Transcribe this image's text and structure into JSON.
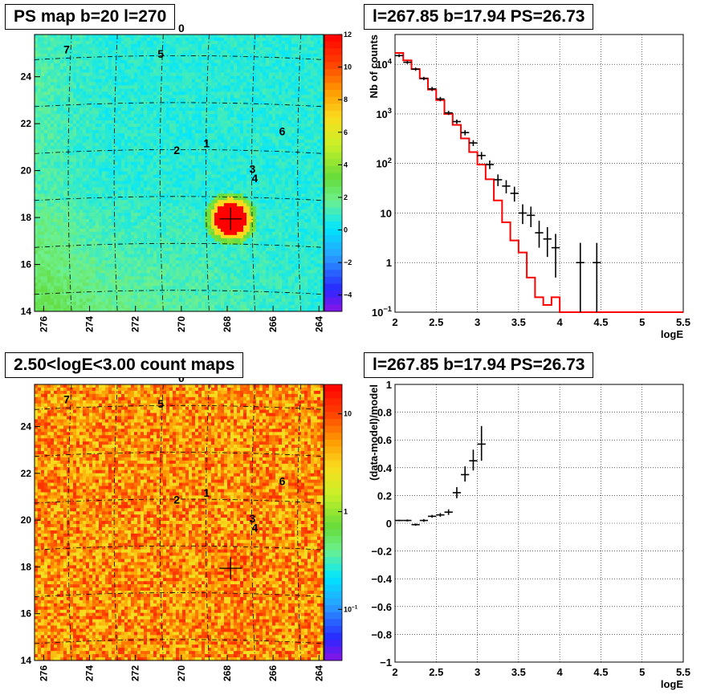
{
  "chart_data": [
    {
      "type": "heatmap",
      "title": "PS map b=20 l=270",
      "x_ticks": [
        "276",
        "274",
        "272",
        "270",
        "268",
        "266",
        "264"
      ],
      "y_ticks": [
        "14",
        "16",
        "18",
        "20",
        "22",
        "24"
      ],
      "colorbar_ticks": [
        "12",
        "10",
        "8",
        "6",
        "4",
        "2",
        "0",
        "−2",
        "−4"
      ],
      "colorbar_range": [
        -5,
        12
      ],
      "source_labels": [
        {
          "label": "0",
          "l": 270.0,
          "b": 25.9
        },
        {
          "label": "5",
          "l": 270.9,
          "b": 24.8
        },
        {
          "label": "7",
          "l": 275.0,
          "b": 25.0
        },
        {
          "label": "1",
          "l": 268.9,
          "b": 21.0
        },
        {
          "label": "2",
          "l": 270.2,
          "b": 20.7
        },
        {
          "label": "6",
          "l": 265.6,
          "b": 21.5
        },
        {
          "label": "3",
          "l": 266.9,
          "b": 19.9
        },
        {
          "label": "4",
          "l": 266.8,
          "b": 19.5
        }
      ],
      "hotspot": {
        "l": 267.85,
        "b": 17.94,
        "value": 12
      },
      "point_source_marker": {
        "l": 267.85,
        "b": 17.94
      }
    },
    {
      "type": "line",
      "title": "l=267.85 b=17.94 PS=26.73",
      "xlabel": "logE",
      "ylabel": "Nb of counts",
      "xlim": [
        2,
        5.5
      ],
      "ylim": [
        0.1,
        40000
      ],
      "y_scale": "log",
      "x_ticks": [
        "2",
        "2.5",
        "3",
        "3.5",
        "4",
        "4.5",
        "5",
        "5.5"
      ],
      "y_ticks": [
        {
          "v": 0.1,
          "base": "10",
          "exp": "−1"
        },
        {
          "v": 1,
          "base": "1",
          "exp": ""
        },
        {
          "v": 10,
          "base": "10",
          "exp": ""
        },
        {
          "v": 100,
          "base": "10",
          "exp": "2"
        },
        {
          "v": 1000,
          "base": "10",
          "exp": "3"
        },
        {
          "v": 10000,
          "base": "10",
          "exp": "4"
        }
      ],
      "grid": true,
      "model_edges": [
        2.0,
        2.1,
        2.2,
        2.3,
        2.4,
        2.5,
        2.6,
        2.7,
        2.8,
        2.9,
        3.0,
        3.1,
        3.2,
        3.3,
        3.4,
        3.5,
        3.6,
        3.7,
        3.8,
        3.9,
        4.0,
        5.5
      ],
      "model_values": [
        17000,
        12000,
        8000,
        5200,
        3100,
        1900,
        1000,
        600,
        320,
        170,
        95,
        48,
        18,
        6.5,
        2.8,
        1.6,
        0.5,
        0.2,
        0.14,
        0.2,
        0.1
      ],
      "data_points": [
        {
          "x": 2.05,
          "y": 15000,
          "dx": 0.05,
          "ylo": 14000,
          "yhi": 16000
        },
        {
          "x": 2.15,
          "y": 11000,
          "dx": 0.05,
          "ylo": 10200,
          "yhi": 11800
        },
        {
          "x": 2.25,
          "y": 8000,
          "dx": 0.05,
          "ylo": 7400,
          "yhi": 8600
        },
        {
          "x": 2.35,
          "y": 5200,
          "dx": 0.05,
          "ylo": 4800,
          "yhi": 5600
        },
        {
          "x": 2.45,
          "y": 3200,
          "dx": 0.05,
          "ylo": 2900,
          "yhi": 3500
        },
        {
          "x": 2.55,
          "y": 2000,
          "dx": 0.05,
          "ylo": 1800,
          "yhi": 2200
        },
        {
          "x": 2.65,
          "y": 1050,
          "dx": 0.05,
          "ylo": 950,
          "yhi": 1150
        },
        {
          "x": 2.75,
          "y": 700,
          "dx": 0.05,
          "ylo": 630,
          "yhi": 770
        },
        {
          "x": 2.85,
          "y": 420,
          "dx": 0.05,
          "ylo": 370,
          "yhi": 470
        },
        {
          "x": 2.95,
          "y": 260,
          "dx": 0.05,
          "ylo": 225,
          "yhi": 295
        },
        {
          "x": 3.05,
          "y": 145,
          "dx": 0.05,
          "ylo": 120,
          "yhi": 170
        },
        {
          "x": 3.15,
          "y": 95,
          "dx": 0.05,
          "ylo": 77,
          "yhi": 115
        },
        {
          "x": 3.25,
          "y": 47,
          "dx": 0.05,
          "ylo": 35,
          "yhi": 60
        },
        {
          "x": 3.35,
          "y": 35,
          "dx": 0.05,
          "ylo": 25,
          "yhi": 46
        },
        {
          "x": 3.45,
          "y": 25,
          "dx": 0.05,
          "ylo": 17,
          "yhi": 34
        },
        {
          "x": 3.55,
          "y": 10,
          "dx": 0.05,
          "ylo": 6,
          "yhi": 15
        },
        {
          "x": 3.65,
          "y": 9,
          "dx": 0.05,
          "ylo": 5.2,
          "yhi": 13.5
        },
        {
          "x": 3.75,
          "y": 4,
          "dx": 0.05,
          "ylo": 2,
          "yhi": 7
        },
        {
          "x": 3.85,
          "y": 3,
          "dx": 0.05,
          "ylo": 1.3,
          "yhi": 5.2
        },
        {
          "x": 3.95,
          "y": 2,
          "dx": 0.05,
          "ylo": 0.5,
          "yhi": 3.8
        },
        {
          "x": 4.25,
          "y": 1,
          "dx": 0.05,
          "ylo": 0.1,
          "yhi": 2.5
        },
        {
          "x": 4.45,
          "y": 1,
          "dx": 0.05,
          "ylo": 0.1,
          "yhi": 2.5
        }
      ]
    },
    {
      "type": "heatmap",
      "title": "2.50<logE<3.00 count maps",
      "x_ticks": [
        "276",
        "274",
        "272",
        "270",
        "268",
        "266",
        "264"
      ],
      "y_ticks": [
        "14",
        "16",
        "18",
        "20",
        "22",
        "24"
      ],
      "colorbar_scale": "log",
      "colorbar_ticks": [
        {
          "v": 10,
          "base": "10",
          "exp": ""
        },
        {
          "v": 1,
          "base": "1",
          "exp": ""
        },
        {
          "v": 0.1,
          "base": "10",
          "exp": "−1"
        }
      ],
      "colorbar_range": [
        0.03,
        20
      ],
      "source_labels": [
        {
          "label": "0",
          "l": 270.0,
          "b": 25.9
        },
        {
          "label": "5",
          "l": 270.9,
          "b": 24.8
        },
        {
          "label": "7",
          "l": 275.0,
          "b": 25.0
        },
        {
          "label": "1",
          "l": 268.9,
          "b": 21.0
        },
        {
          "label": "2",
          "l": 270.2,
          "b": 20.7
        },
        {
          "label": "6",
          "l": 265.6,
          "b": 21.5
        },
        {
          "label": "3",
          "l": 266.9,
          "b": 19.9
        },
        {
          "label": "4",
          "l": 266.8,
          "b": 19.5
        }
      ],
      "point_source_marker": {
        "l": 267.85,
        "b": 17.94
      }
    },
    {
      "type": "scatter",
      "title": "l=267.85 b=17.94 PS=26.73",
      "xlabel": "logE",
      "ylabel": "(data-model)/model",
      "xlim": [
        2,
        5.5
      ],
      "ylim": [
        -1,
        1
      ],
      "x_ticks": [
        "2",
        "2.5",
        "3",
        "3.5",
        "4",
        "4.5",
        "5",
        "5.5"
      ],
      "y_ticks": [
        "−1",
        "−0.8",
        "−0.6",
        "−0.4",
        "−0.2",
        "0",
        "0.2",
        "0.4",
        "0.6",
        "0.8",
        "1"
      ],
      "grid": true,
      "data_points": [
        {
          "x": 2.05,
          "y": 0.02,
          "dx": 0.05,
          "ylo": 0.015,
          "yhi": 0.025
        },
        {
          "x": 2.15,
          "y": 0.02,
          "dx": 0.05,
          "ylo": 0.013,
          "yhi": 0.027
        },
        {
          "x": 2.25,
          "y": -0.01,
          "dx": 0.05,
          "ylo": -0.018,
          "yhi": -0.002
        },
        {
          "x": 2.35,
          "y": 0.02,
          "dx": 0.05,
          "ylo": 0.01,
          "yhi": 0.03
        },
        {
          "x": 2.45,
          "y": 0.05,
          "dx": 0.05,
          "ylo": 0.04,
          "yhi": 0.06
        },
        {
          "x": 2.55,
          "y": 0.06,
          "dx": 0.05,
          "ylo": 0.047,
          "yhi": 0.073
        },
        {
          "x": 2.65,
          "y": 0.08,
          "dx": 0.05,
          "ylo": 0.06,
          "yhi": 0.1
        },
        {
          "x": 2.75,
          "y": 0.22,
          "dx": 0.05,
          "ylo": 0.18,
          "yhi": 0.26
        },
        {
          "x": 2.85,
          "y": 0.35,
          "dx": 0.05,
          "ylo": 0.3,
          "yhi": 0.41
        },
        {
          "x": 2.95,
          "y": 0.45,
          "dx": 0.05,
          "ylo": 0.38,
          "yhi": 0.53
        },
        {
          "x": 3.05,
          "y": 0.57,
          "dx": 0.05,
          "ylo": 0.45,
          "yhi": 0.7
        }
      ]
    }
  ]
}
